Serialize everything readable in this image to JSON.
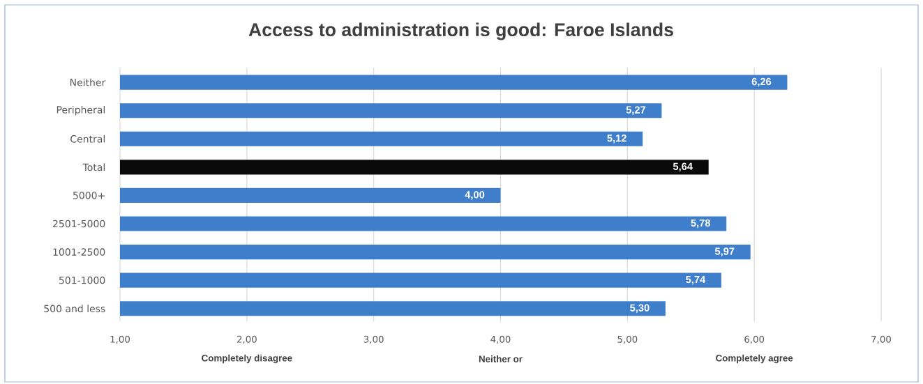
{
  "chart_data": {
    "type": "bar",
    "orientation": "horizontal",
    "title": "Access to administration is good: Faroe Islands",
    "categories": [
      "Neither",
      "Peripheral",
      "Central",
      "Total",
      "5000+",
      "2501-5000",
      "1001-2500",
      "501-1000",
      "500 and less"
    ],
    "values": [
      6.26,
      5.27,
      5.12,
      5.64,
      4.0,
      5.78,
      5.97,
      5.74,
      5.3
    ],
    "colors": [
      "#3f7ecb",
      "#3f7ecb",
      "#3f7ecb",
      "#0a0a0a",
      "#3f7ecb",
      "#3f7ecb",
      "#3f7ecb",
      "#3f7ecb",
      "#3f7ecb"
    ],
    "value_labels": [
      "6,26",
      "5,27",
      "5,12",
      "5,64",
      "4,00",
      "5,78",
      "5,97",
      "5,74",
      "5,30"
    ],
    "xlim": [
      1,
      7
    ],
    "xticks": [
      {
        "value": 1,
        "label": "1,00"
      },
      {
        "value": 2,
        "label": "2,00"
      },
      {
        "value": 3,
        "label": "3,00"
      },
      {
        "value": 4,
        "label": "4,00"
      },
      {
        "value": 5,
        "label": "5,00"
      },
      {
        "value": 6,
        "label": "6,00"
      },
      {
        "value": 7,
        "label": "7,00"
      }
    ],
    "grid": "x",
    "annotations": [
      "Completely disagree",
      "Neither or",
      "Completely agree"
    ]
  }
}
